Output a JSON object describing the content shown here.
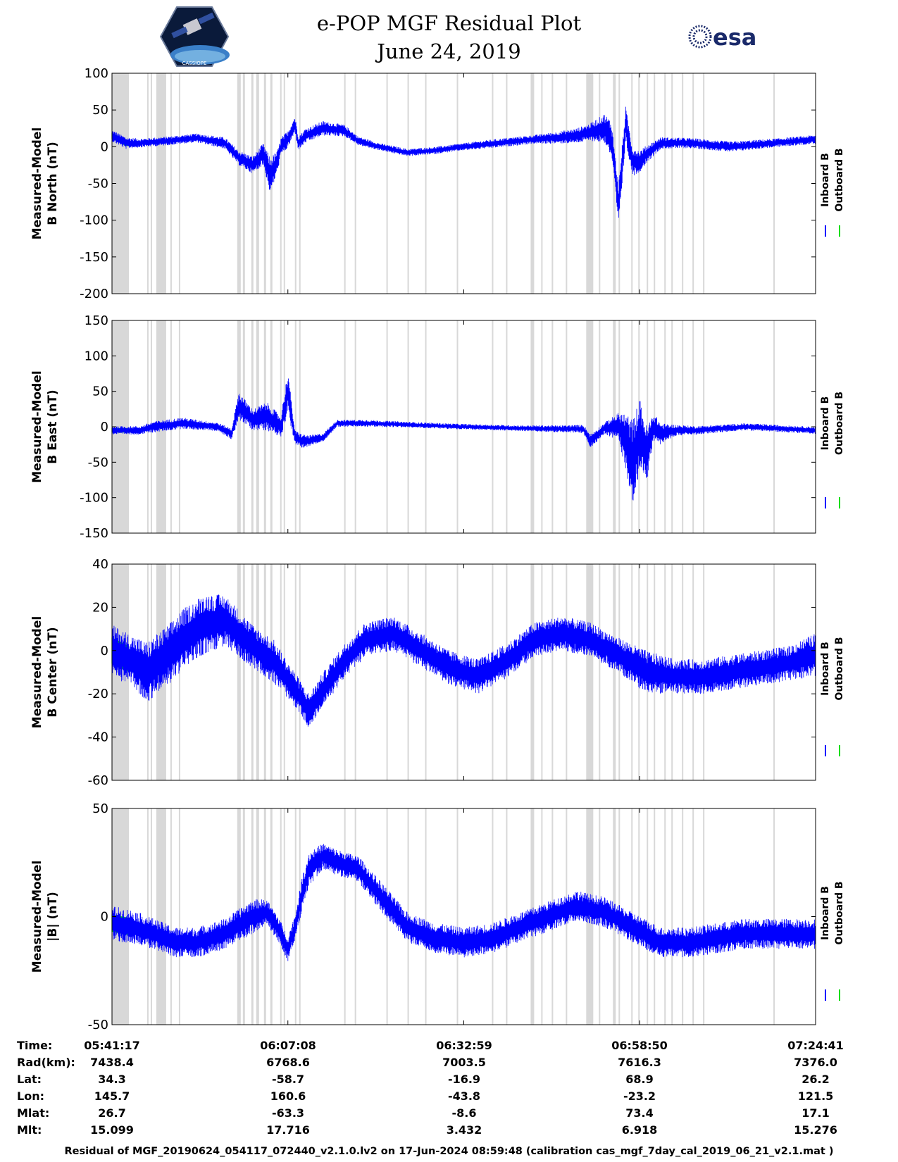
{
  "header": {
    "title": "e-POP MGF Residual Plot",
    "date": "June 24, 2019",
    "left_logo_text": "CASSIOPE",
    "right_logo_text": "esa"
  },
  "footer": {
    "text": "Residual of MGF_20190624_054117_072440_v2.1.0.lv2 on 17-Jun-2024 08:59:48 (calibration cas_mgf_7day_cal_2019_06_21_v2.1.mat )"
  },
  "colors": {
    "inboard": "#0000ff",
    "outboard": "#00dd00",
    "gap": "#d8d8d8"
  },
  "chart_data": [
    {
      "type": "line",
      "ylabel": [
        "Measured-Model",
        "B North (nT)"
      ],
      "ylim": [
        -200,
        100
      ],
      "yticks": [
        100,
        50,
        0,
        -50,
        -100,
        -150,
        -200
      ],
      "legend": [
        "Inboard B",
        "Outboard B"
      ],
      "series": [
        {
          "name": "Inboard B",
          "color": "#0000ff",
          "x": [
            0,
            0.02,
            0.04,
            0.08,
            0.12,
            0.16,
            0.18,
            0.2,
            0.215,
            0.225,
            0.235,
            0.24,
            0.25,
            0.26,
            0.265,
            0.275,
            0.3,
            0.33,
            0.35,
            0.38,
            0.42,
            0.46,
            0.5,
            0.55,
            0.6,
            0.63,
            0.66,
            0.68,
            0.7,
            0.71,
            0.72,
            0.73,
            0.74,
            0.75,
            0.76,
            0.78,
            0.82,
            0.88,
            0.94,
            1
          ],
          "y": [
            15,
            5,
            5,
            8,
            12,
            5,
            -15,
            -25,
            -10,
            -40,
            -20,
            0,
            10,
            30,
            5,
            15,
            25,
            22,
            8,
            0,
            -8,
            -5,
            0,
            5,
            10,
            12,
            15,
            20,
            25,
            10,
            -80,
            30,
            -20,
            -20,
            -10,
            5,
            5,
            0,
            5,
            10
          ],
          "amp": [
            8,
            8,
            6,
            6,
            6,
            8,
            10,
            12,
            15,
            25,
            15,
            12,
            12,
            12,
            10,
            10,
            10,
            8,
            6,
            5,
            5,
            5,
            5,
            6,
            6,
            8,
            10,
            12,
            20,
            25,
            30,
            25,
            20,
            15,
            12,
            8,
            7,
            7,
            6,
            6
          ]
        }
      ]
    },
    {
      "type": "line",
      "ylabel": [
        "Measured-Model",
        "B East (nT)"
      ],
      "ylim": [
        -150,
        150
      ],
      "yticks": [
        150,
        100,
        50,
        0,
        -50,
        -100,
        -150
      ],
      "legend": [
        "Inboard B",
        "Outboard B"
      ],
      "series": [
        {
          "name": "Inboard B",
          "color": "#0000ff",
          "x": [
            0,
            0.02,
            0.04,
            0.06,
            0.1,
            0.15,
            0.17,
            0.18,
            0.2,
            0.22,
            0.24,
            0.25,
            0.26,
            0.27,
            0.28,
            0.3,
            0.32,
            0.36,
            0.42,
            0.5,
            0.58,
            0.64,
            0.67,
            0.68,
            0.7,
            0.72,
            0.73,
            0.74,
            0.75,
            0.76,
            0.77,
            0.78,
            0.8,
            0.83,
            0.9,
            0.96,
            1
          ],
          "y": [
            -5,
            -5,
            -5,
            0,
            5,
            0,
            -10,
            30,
            10,
            15,
            0,
            50,
            -15,
            -20,
            -20,
            -15,
            5,
            5,
            3,
            0,
            -2,
            -3,
            -3,
            -20,
            -2,
            0,
            -20,
            -50,
            -10,
            -40,
            0,
            -10,
            -5,
            -5,
            0,
            -3,
            -5
          ],
          "amp": [
            6,
            6,
            6,
            8,
            8,
            6,
            8,
            20,
            15,
            20,
            15,
            30,
            10,
            10,
            8,
            6,
            5,
            5,
            4,
            4,
            4,
            5,
            6,
            10,
            8,
            20,
            40,
            60,
            50,
            40,
            20,
            15,
            8,
            6,
            5,
            5,
            5
          ]
        }
      ]
    },
    {
      "type": "line",
      "ylabel": [
        "Measured-Model",
        "B Center (nT)"
      ],
      "ylim": [
        -60,
        40
      ],
      "yticks": [
        40,
        20,
        0,
        -20,
        -40,
        -60
      ],
      "legend": [
        "Inboard B",
        "Outboard B"
      ],
      "series": [
        {
          "name": "Inboard B",
          "color": "#0000ff",
          "x": [
            0,
            0.03,
            0.05,
            0.08,
            0.1,
            0.13,
            0.16,
            0.2,
            0.23,
            0.26,
            0.28,
            0.3,
            0.33,
            0.36,
            0.4,
            0.44,
            0.48,
            0.52,
            0.56,
            0.6,
            0.64,
            0.68,
            0.72,
            0.76,
            0.8,
            0.84,
            0.88,
            0.92,
            0.96,
            1
          ],
          "y": [
            0,
            -5,
            -10,
            -2,
            5,
            12,
            14,
            2,
            -5,
            -18,
            -28,
            -18,
            -5,
            5,
            8,
            0,
            -8,
            -12,
            -5,
            5,
            8,
            5,
            -2,
            -10,
            -12,
            -12,
            -10,
            -8,
            -6,
            -2
          ],
          "amp": [
            12,
            12,
            14,
            14,
            14,
            14,
            12,
            10,
            10,
            8,
            8,
            8,
            8,
            8,
            8,
            8,
            8,
            8,
            8,
            8,
            8,
            8,
            8,
            10,
            8,
            8,
            8,
            8,
            8,
            10
          ]
        }
      ]
    },
    {
      "type": "line",
      "ylabel": [
        "Measured-Model",
        "|B| (nT)"
      ],
      "ylim": [
        -50,
        50
      ],
      "yticks": [
        50,
        0,
        -50
      ],
      "legend": [
        "Inboard B",
        "Outboard B"
      ],
      "series": [
        {
          "name": "Inboard B",
          "color": "#0000ff",
          "x": [
            0,
            0.03,
            0.06,
            0.09,
            0.12,
            0.16,
            0.2,
            0.22,
            0.235,
            0.25,
            0.26,
            0.27,
            0.28,
            0.3,
            0.32,
            0.35,
            0.38,
            0.42,
            0.46,
            0.5,
            0.54,
            0.58,
            0.62,
            0.66,
            0.7,
            0.74,
            0.78,
            0.82,
            0.86,
            0.9,
            0.95,
            1
          ],
          "y": [
            -3,
            -5,
            -8,
            -12,
            -12,
            -8,
            0,
            2,
            -5,
            -15,
            -5,
            10,
            22,
            28,
            25,
            22,
            10,
            -5,
            -10,
            -12,
            -10,
            -5,
            0,
            5,
            2,
            -5,
            -12,
            -12,
            -10,
            -8,
            -8,
            -8
          ],
          "amp": [
            8,
            8,
            7,
            7,
            7,
            7,
            8,
            6,
            6,
            6,
            6,
            8,
            8,
            6,
            6,
            6,
            7,
            7,
            7,
            7,
            7,
            7,
            7,
            7,
            7,
            7,
            7,
            7,
            7,
            7,
            7,
            7
          ]
        }
      ]
    }
  ],
  "gap_bands": [
    [
      0.0,
      0.024
    ],
    [
      0.05,
      0.052
    ],
    [
      0.055,
      0.057
    ],
    [
      0.063,
      0.077
    ],
    [
      0.083,
      0.085
    ],
    [
      0.095,
      0.097
    ],
    [
      0.178,
      0.183
    ],
    [
      0.186,
      0.189
    ],
    [
      0.198,
      0.201
    ],
    [
      0.205,
      0.209
    ],
    [
      0.216,
      0.219
    ],
    [
      0.225,
      0.228
    ],
    [
      0.239,
      0.241
    ],
    [
      0.244,
      0.246
    ],
    [
      0.26,
      0.262
    ],
    [
      0.266,
      0.268
    ],
    [
      0.33,
      0.332
    ],
    [
      0.345,
      0.347
    ],
    [
      0.39,
      0.392
    ],
    [
      0.42,
      0.422
    ],
    [
      0.445,
      0.447
    ],
    [
      0.49,
      0.492
    ],
    [
      0.54,
      0.542
    ],
    [
      0.56,
      0.562
    ],
    [
      0.595,
      0.6
    ],
    [
      0.61,
      0.612
    ],
    [
      0.625,
      0.627
    ],
    [
      0.645,
      0.647
    ],
    [
      0.674,
      0.684
    ],
    [
      0.692,
      0.694
    ],
    [
      0.712,
      0.716
    ],
    [
      0.72,
      0.722
    ],
    [
      0.738,
      0.74
    ],
    [
      0.748,
      0.75
    ],
    [
      0.76,
      0.762
    ],
    [
      0.77,
      0.772
    ],
    [
      0.785,
      0.787
    ],
    [
      0.795,
      0.797
    ],
    [
      0.81,
      0.812
    ],
    [
      0.825,
      0.827
    ],
    [
      0.84,
      0.842
    ],
    [
      0.94,
      0.942
    ]
  ],
  "time_axis": {
    "rows": [
      {
        "label": "Time:",
        "values": [
          "05:41:17",
          "06:07:08",
          "06:32:59",
          "06:58:50",
          "07:24:41"
        ]
      },
      {
        "label": "Rad(km):",
        "values": [
          "7438.4",
          "6768.6",
          "7003.5",
          "7616.3",
          "7376.0"
        ]
      },
      {
        "label": "Lat:",
        "values": [
          "34.3",
          "-58.7",
          "-16.9",
          "68.9",
          "26.2"
        ]
      },
      {
        "label": "Lon:",
        "values": [
          "145.7",
          "160.6",
          "-43.8",
          "-23.2",
          "121.5"
        ]
      },
      {
        "label": "Mlat:",
        "values": [
          "26.7",
          "-63.3",
          "-8.6",
          "73.4",
          "17.1"
        ]
      },
      {
        "label": "Mlt:",
        "values": [
          "15.099",
          "17.716",
          "3.432",
          "6.918",
          "15.276"
        ]
      }
    ]
  }
}
